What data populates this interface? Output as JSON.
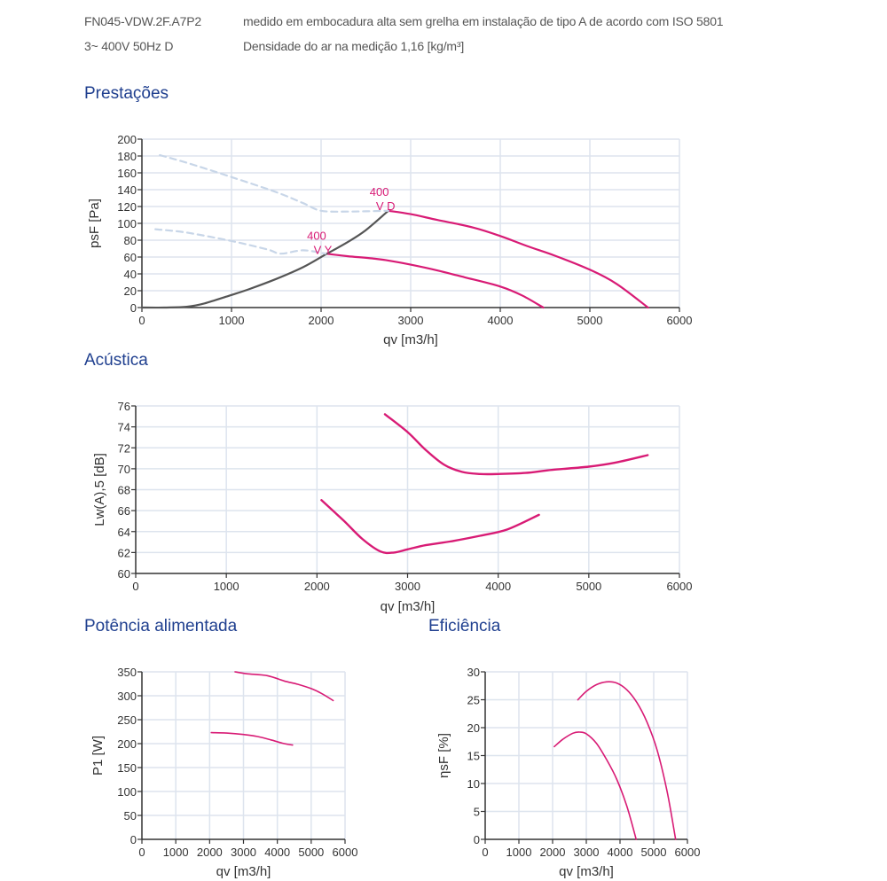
{
  "header": {
    "model": "FN045-VDW.2F.A7P2",
    "description": "medido em embocadura alta sem grelha em instalação de tipo A de acordo com ISO 5801",
    "supply": "3~ 400V 50Hz D",
    "density": "Densidade do ar na medição 1,16 [kg/m³]"
  },
  "sections": {
    "performance": "Prestações",
    "acoustics": "Acústica",
    "power": "Potência alimentada",
    "efficiency": "Eficiência"
  },
  "colors": {
    "curve": "#d81b75",
    "system": "#555555",
    "dashed": "#c8d6e8",
    "grid": "#dde4ee"
  },
  "chart_data": [
    {
      "id": "performance",
      "type": "line",
      "xlabel": "qv [m3/h]",
      "ylabel": "psF [Pa]",
      "xlim": [
        0,
        6000
      ],
      "ylim": [
        0,
        200
      ],
      "xticks": [
        0,
        1000,
        2000,
        3000,
        4000,
        5000,
        6000
      ],
      "yticks": [
        0,
        20,
        40,
        60,
        80,
        100,
        120,
        140,
        160,
        180,
        200
      ],
      "grid": true,
      "annotations": [
        {
          "text": [
            "400",
            "V D"
          ],
          "x": 2650,
          "y": 118
        },
        {
          "text": [
            "400",
            "V Y"
          ],
          "x": 1950,
          "y": 66
        }
      ],
      "series": [
        {
          "name": "400 V D",
          "style": "solid",
          "color": "#d81b75",
          "points": [
            [
              2750,
              115
            ],
            [
              3000,
              111
            ],
            [
              3300,
              104
            ],
            [
              3700,
              95
            ],
            [
              4000,
              85
            ],
            [
              4300,
              73
            ],
            [
              4600,
              62
            ],
            [
              5000,
              45
            ],
            [
              5300,
              28
            ],
            [
              5650,
              0
            ]
          ]
        },
        {
          "name": "400 V Y",
          "style": "solid",
          "color": "#d81b75",
          "points": [
            [
              2050,
              64
            ],
            [
              2300,
              61
            ],
            [
              2600,
              58
            ],
            [
              2800,
              55
            ],
            [
              3000,
              51
            ],
            [
              3300,
              44
            ],
            [
              3600,
              36
            ],
            [
              4000,
              25
            ],
            [
              4250,
              14
            ],
            [
              4480,
              0
            ]
          ]
        },
        {
          "name": "system curve",
          "style": "solid",
          "color": "#555555",
          "points": [
            [
              0,
              0
            ],
            [
              250,
              0
            ],
            [
              500,
              1
            ],
            [
              700,
              5
            ],
            [
              1000,
              15
            ],
            [
              1200,
              22
            ],
            [
              1500,
              34
            ],
            [
              1800,
              48
            ],
            [
              2050,
              63
            ],
            [
              2300,
              78
            ],
            [
              2500,
              92
            ],
            [
              2750,
              115
            ]
          ]
        },
        {
          "name": "D extension",
          "style": "dashed",
          "color": "#c8d6e8",
          "points": [
            [
              200,
              181
            ],
            [
              500,
              172
            ],
            [
              1000,
              155
            ],
            [
              1500,
              137
            ],
            [
              1800,
              124
            ],
            [
              2000,
              115
            ],
            [
              2300,
              114
            ],
            [
              2750,
              115
            ]
          ]
        },
        {
          "name": "Y extension",
          "style": "dashed",
          "color": "#c8d6e8",
          "points": [
            [
              150,
              93
            ],
            [
              500,
              89
            ],
            [
              1000,
              79
            ],
            [
              1400,
              69
            ],
            [
              1550,
              64
            ],
            [
              1800,
              68
            ],
            [
              2050,
              64
            ]
          ]
        }
      ]
    },
    {
      "id": "acoustics",
      "type": "line",
      "xlabel": "qv [m3/h]",
      "ylabel": "Lw(A),5 [dB]",
      "xlim": [
        0,
        6000
      ],
      "ylim": [
        60,
        76
      ],
      "xticks": [
        0,
        1000,
        2000,
        3000,
        4000,
        5000,
        6000
      ],
      "yticks": [
        60,
        62,
        64,
        66,
        68,
        70,
        72,
        74,
        76
      ],
      "grid": true,
      "series": [
        {
          "name": "400 V D",
          "color": "#d81b75",
          "points": [
            [
              2750,
              75.2
            ],
            [
              3000,
              73.5
            ],
            [
              3200,
              71.8
            ],
            [
              3400,
              70.4
            ],
            [
              3600,
              69.7
            ],
            [
              3800,
              69.5
            ],
            [
              4000,
              69.5
            ],
            [
              4300,
              69.6
            ],
            [
              4600,
              69.9
            ],
            [
              5000,
              70.2
            ],
            [
              5300,
              70.6
            ],
            [
              5650,
              71.3
            ]
          ]
        },
        {
          "name": "400 V Y",
          "color": "#d81b75",
          "points": [
            [
              2050,
              67
            ],
            [
              2300,
              65
            ],
            [
              2500,
              63.3
            ],
            [
              2700,
              62.1
            ],
            [
              2850,
              62.0
            ],
            [
              3000,
              62.3
            ],
            [
              3200,
              62.7
            ],
            [
              3500,
              63.1
            ],
            [
              3800,
              63.6
            ],
            [
              4100,
              64.2
            ],
            [
              4450,
              65.6
            ]
          ]
        }
      ]
    },
    {
      "id": "power",
      "type": "line",
      "xlabel": "qv [m3/h]",
      "ylabel": "P1 [W]",
      "xlim": [
        0,
        6000
      ],
      "ylim": [
        0,
        350
      ],
      "xticks": [
        0,
        1000,
        2000,
        3000,
        4000,
        5000,
        6000
      ],
      "yticks": [
        0,
        50,
        100,
        150,
        200,
        250,
        300,
        350
      ],
      "grid": true,
      "series": [
        {
          "name": "400 V D",
          "color": "#d81b75",
          "points": [
            [
              2750,
              350
            ],
            [
              3100,
              346
            ],
            [
              3700,
              342
            ],
            [
              4200,
              331
            ],
            [
              4600,
              324
            ],
            [
              5000,
              315
            ],
            [
              5300,
              305
            ],
            [
              5650,
              290
            ]
          ]
        },
        {
          "name": "400 V Y",
          "color": "#d81b75",
          "points": [
            [
              2050,
              223
            ],
            [
              2500,
              222
            ],
            [
              3000,
              219
            ],
            [
              3400,
              215
            ],
            [
              3800,
              208
            ],
            [
              4150,
              201
            ],
            [
              4450,
              197
            ]
          ]
        }
      ]
    },
    {
      "id": "efficiency",
      "type": "line",
      "xlabel": "qv [m3/h]",
      "ylabel": "ηsF [%]",
      "xlim": [
        0,
        6000
      ],
      "ylim": [
        0,
        30
      ],
      "xticks": [
        0,
        1000,
        2000,
        3000,
        4000,
        5000,
        6000
      ],
      "yticks": [
        0,
        5,
        10,
        15,
        20,
        25,
        30
      ],
      "grid": true,
      "series": [
        {
          "name": "400 V D",
          "color": "#d81b75",
          "points": [
            [
              2750,
              25
            ],
            [
              3000,
              26.5
            ],
            [
              3300,
              27.7
            ],
            [
              3600,
              28.2
            ],
            [
              3900,
              28
            ],
            [
              4200,
              26.8
            ],
            [
              4500,
              24.5
            ],
            [
              4800,
              21
            ],
            [
              5100,
              16
            ],
            [
              5400,
              8.5
            ],
            [
              5650,
              0
            ]
          ]
        },
        {
          "name": "400 V Y",
          "color": "#d81b75",
          "points": [
            [
              2050,
              16.6
            ],
            [
              2300,
              17.9
            ],
            [
              2600,
              19
            ],
            [
              2800,
              19.2
            ],
            [
              3000,
              18.9
            ],
            [
              3300,
              17.2
            ],
            [
              3600,
              14.3
            ],
            [
              3900,
              10.8
            ],
            [
              4200,
              6
            ],
            [
              4480,
              0
            ]
          ]
        }
      ]
    }
  ]
}
